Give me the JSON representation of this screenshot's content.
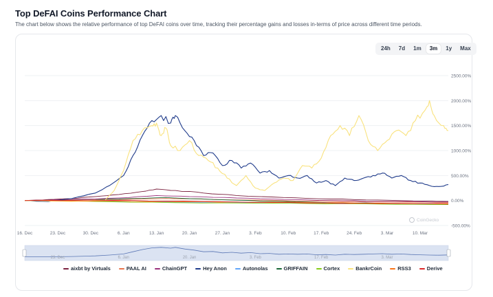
{
  "title": "Top DeFAI Coins Performance Chart",
  "subtitle": "The chart below shows the relative performance of top DeFAI coins over time, tracking their percentage gains and losses in-terms of price across different time periods.",
  "ranges": [
    {
      "label": "24h",
      "active": false
    },
    {
      "label": "7d",
      "active": false
    },
    {
      "label": "1m",
      "active": false
    },
    {
      "label": "3m",
      "active": true
    },
    {
      "label": "1y",
      "active": false
    },
    {
      "label": "Max",
      "active": false
    }
  ],
  "watermark": "CoinGecko",
  "chart_data": {
    "type": "line",
    "unit": "percent change",
    "ylim": [
      -500,
      2500
    ],
    "y_ticks": [
      2500,
      2000,
      1500,
      1000,
      500,
      0,
      -500
    ],
    "y_tick_labels": [
      "2500.00%",
      "2000.00%",
      "1500.00%",
      "1000.00%",
      "500.00%",
      "0.00%",
      "-500.00%"
    ],
    "x_range": [
      "16. Dec",
      "16. Mar"
    ],
    "x_ticks": [
      {
        "label": "16. Dec",
        "day": 0
      },
      {
        "label": "23. Dec",
        "day": 7
      },
      {
        "label": "30. Dec",
        "day": 14
      },
      {
        "label": "6. Jan",
        "day": 21
      },
      {
        "label": "13. Jan",
        "day": 28
      },
      {
        "label": "20. Jan",
        "day": 35
      },
      {
        "label": "27. Jan",
        "day": 42
      },
      {
        "label": "3. Feb",
        "day": 49
      },
      {
        "label": "10. Feb",
        "day": 56
      },
      {
        "label": "17. Feb",
        "day": 63
      },
      {
        "label": "24. Feb",
        "day": 70
      },
      {
        "label": "3. Mar",
        "day": 77
      },
      {
        "label": "10. Mar",
        "day": 84
      }
    ],
    "navigator_ticks": [
      {
        "label": "23. Dec",
        "day": 7
      },
      {
        "label": "6. Jan",
        "day": 21
      },
      {
        "label": "20. Jan",
        "day": 35
      },
      {
        "label": "3. Feb",
        "day": 49
      },
      {
        "label": "17. Feb",
        "day": 63
      },
      {
        "label": "3. Mar",
        "day": 77
      }
    ],
    "series": [
      {
        "name": "aixbt by Virtuals",
        "color": "#7a1f3d",
        "days": [
          0,
          5,
          10,
          15,
          20,
          25,
          28,
          32,
          38,
          45,
          55,
          65,
          75,
          85,
          90
        ],
        "values": [
          0,
          20,
          40,
          80,
          120,
          180,
          230,
          200,
          150,
          100,
          60,
          30,
          10,
          -10,
          -20
        ]
      },
      {
        "name": "PAAL AI",
        "color": "#e8734a",
        "days": [
          0,
          10,
          20,
          30,
          40,
          50,
          60,
          70,
          80,
          90
        ],
        "values": [
          0,
          10,
          20,
          40,
          20,
          10,
          -10,
          -20,
          -30,
          -40
        ]
      },
      {
        "name": "ChainGPT",
        "color": "#9a2f7a",
        "days": [
          0,
          10,
          20,
          28,
          35,
          45,
          55,
          65,
          75,
          90
        ],
        "values": [
          0,
          20,
          50,
          100,
          80,
          50,
          20,
          0,
          -20,
          -30
        ]
      },
      {
        "name": "Hey Anon",
        "color": "#1e3a8a",
        "days": [
          0,
          5,
          10,
          15,
          18,
          21,
          23,
          25,
          27,
          29,
          31,
          32,
          34,
          36,
          38,
          40,
          42,
          44,
          46,
          48,
          50,
          52,
          54,
          56,
          58,
          60,
          62,
          64,
          66,
          68,
          70,
          72,
          74,
          76,
          78,
          80,
          82,
          84,
          86,
          88,
          90
        ],
        "values": [
          0,
          -20,
          40,
          150,
          300,
          500,
          900,
          1300,
          1600,
          1700,
          1550,
          1700,
          1400,
          1200,
          900,
          950,
          700,
          800,
          650,
          750,
          550,
          600,
          450,
          500,
          450,
          500,
          350,
          400,
          300,
          450,
          400,
          450,
          500,
          550,
          450,
          500,
          400,
          350,
          300,
          280,
          320
        ]
      },
      {
        "name": "Autonolas",
        "color": "#60a5fa",
        "days": [
          0,
          15,
          30,
          45,
          60,
          75,
          90
        ],
        "values": [
          0,
          -10,
          -30,
          -40,
          -50,
          -60,
          -70
        ]
      },
      {
        "name": "GRIFFAIN",
        "color": "#166534",
        "days": [
          0,
          10,
          20,
          30,
          40,
          50,
          60,
          70,
          80,
          90
        ],
        "values": [
          0,
          5,
          30,
          60,
          20,
          -10,
          -30,
          -50,
          -60,
          -70
        ]
      },
      {
        "name": "Cortex",
        "color": "#84cc16",
        "days": [
          0,
          15,
          30,
          45,
          60,
          75,
          90
        ],
        "values": [
          0,
          -20,
          -40,
          -50,
          -60,
          -70,
          -80
        ]
      },
      {
        "name": "BankrCoin",
        "color": "#f9e27d",
        "days": [
          0,
          10,
          17,
          19,
          21,
          23,
          25,
          27,
          28,
          29,
          30,
          31,
          33,
          35,
          37,
          39,
          41,
          43,
          45,
          47,
          49,
          51,
          53,
          55,
          57,
          59,
          61,
          63,
          65,
          67,
          69,
          71,
          73,
          75,
          77,
          79,
          81,
          83,
          85,
          86,
          87,
          89,
          90
        ],
        "values": [
          0,
          -20,
          0,
          200,
          600,
          1200,
          1400,
          1500,
          1550,
          1300,
          1450,
          1100,
          1000,
          1200,
          900,
          800,
          650,
          450,
          300,
          500,
          250,
          200,
          350,
          450,
          400,
          700,
          650,
          850,
          1300,
          1500,
          1300,
          1700,
          1200,
          1000,
          1200,
          1400,
          1300,
          1600,
          1800,
          2000,
          1700,
          1500,
          1400
        ]
      },
      {
        "name": "RSS3",
        "color": "#f97316",
        "days": [
          0,
          15,
          30,
          45,
          60,
          75,
          90
        ],
        "values": [
          0,
          -10,
          -20,
          -30,
          -40,
          -50,
          -60
        ]
      },
      {
        "name": "Derive",
        "color": "#dc2626",
        "days": [
          0,
          15,
          30,
          45,
          60,
          75,
          90
        ],
        "values": [
          0,
          10,
          -10,
          -30,
          -50,
          -60,
          -70
        ]
      }
    ]
  }
}
